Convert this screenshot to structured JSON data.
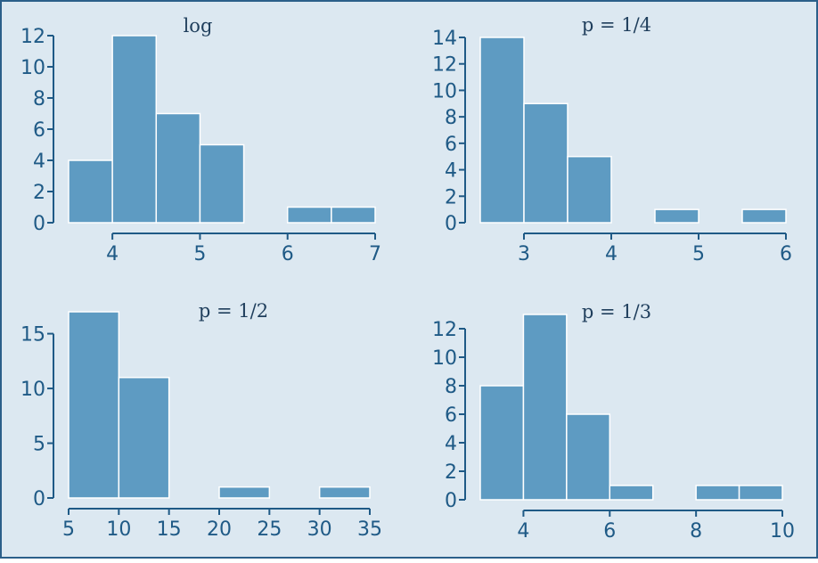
{
  "colors": {
    "background": "#dce8f1",
    "border": "#2b5f8a",
    "bar_fill": "#5e9bc2",
    "bar_stroke": "#ffffff",
    "axis": "#1f5a86",
    "title": "#1f3e5c"
  },
  "chart_data": [
    {
      "type": "bar",
      "title": "log",
      "xlabel": "",
      "ylabel": "",
      "xlim": [
        3.5,
        7
      ],
      "ylim": [
        0,
        12
      ],
      "xticks": [
        4,
        5,
        6,
        7
      ],
      "yticks": [
        0,
        2,
        4,
        6,
        8,
        10,
        12
      ],
      "bins": [
        {
          "x0": 3.5,
          "x1": 4.0,
          "count": 4
        },
        {
          "x0": 4.0,
          "x1": 4.5,
          "count": 12
        },
        {
          "x0": 4.5,
          "x1": 5.0,
          "count": 7
        },
        {
          "x0": 5.0,
          "x1": 5.5,
          "count": 5
        },
        {
          "x0": 5.5,
          "x1": 6.0,
          "count": 0
        },
        {
          "x0": 6.0,
          "x1": 6.5,
          "count": 1
        },
        {
          "x0": 6.5,
          "x1": 7.0,
          "count": 1
        }
      ]
    },
    {
      "type": "bar",
      "title": "p = 1/4",
      "xlabel": "",
      "ylabel": "",
      "xlim": [
        2.5,
        6
      ],
      "ylim": [
        0,
        14
      ],
      "xticks": [
        3,
        4,
        5,
        6
      ],
      "yticks": [
        0,
        2,
        4,
        6,
        8,
        10,
        12,
        14
      ],
      "bins": [
        {
          "x0": 2.5,
          "x1": 3.0,
          "count": 14
        },
        {
          "x0": 3.0,
          "x1": 3.5,
          "count": 9
        },
        {
          "x0": 3.5,
          "x1": 4.0,
          "count": 5
        },
        {
          "x0": 4.0,
          "x1": 4.5,
          "count": 0
        },
        {
          "x0": 4.5,
          "x1": 5.0,
          "count": 1
        },
        {
          "x0": 5.0,
          "x1": 5.5,
          "count": 0
        },
        {
          "x0": 5.5,
          "x1": 6.0,
          "count": 1
        }
      ]
    },
    {
      "type": "bar",
      "title": "p = 1/2",
      "xlabel": "",
      "ylabel": "",
      "xlim": [
        5,
        35
      ],
      "ylim": [
        0,
        17
      ],
      "xticks": [
        5,
        10,
        15,
        20,
        25,
        30,
        35
      ],
      "yticks": [
        0,
        5,
        10,
        15
      ],
      "bins": [
        {
          "x0": 5,
          "x1": 10,
          "count": 17
        },
        {
          "x0": 10,
          "x1": 15,
          "count": 11
        },
        {
          "x0": 15,
          "x1": 20,
          "count": 0
        },
        {
          "x0": 20,
          "x1": 25,
          "count": 1
        },
        {
          "x0": 25,
          "x1": 30,
          "count": 0
        },
        {
          "x0": 30,
          "x1": 35,
          "count": 1
        }
      ]
    },
    {
      "type": "bar",
      "title": "p = 1/3",
      "xlabel": "",
      "ylabel": "",
      "xlim": [
        3,
        10
      ],
      "ylim": [
        0,
        13
      ],
      "xticks": [
        4,
        6,
        8,
        10
      ],
      "yticks": [
        0,
        2,
        4,
        6,
        8,
        10,
        12
      ],
      "bins": [
        {
          "x0": 3,
          "x1": 4,
          "count": 8
        },
        {
          "x0": 4,
          "x1": 5,
          "count": 13
        },
        {
          "x0": 5,
          "x1": 6,
          "count": 6
        },
        {
          "x0": 6,
          "x1": 7,
          "count": 1
        },
        {
          "x0": 7,
          "x1": 8,
          "count": 0
        },
        {
          "x0": 8,
          "x1": 9,
          "count": 1
        },
        {
          "x0": 9,
          "x1": 10,
          "count": 1
        }
      ]
    }
  ]
}
